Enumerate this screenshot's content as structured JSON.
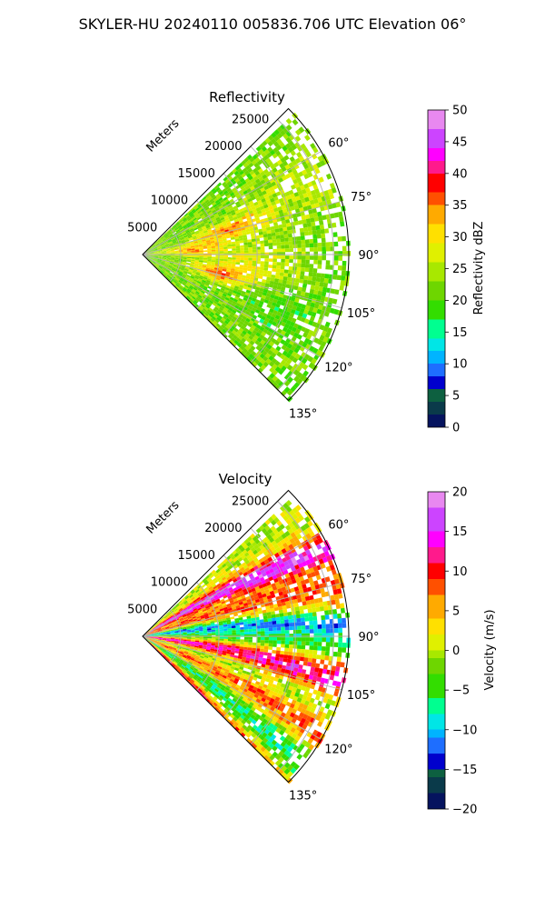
{
  "figure": {
    "suptitle": "SKYLER-HU  20240110  005836.706 UTC Elevation 06°"
  },
  "colors": {
    "grid": "#b0b0b0",
    "outline": "#000000",
    "background": "#ffffff"
  },
  "chart_data": [
    {
      "type": "heatmap",
      "projection": "polar sector (PPI)",
      "title": "Reflectivity",
      "radial_axis_label": "Meters",
      "radial_ticks": [
        5000,
        10000,
        15000,
        20000,
        25000
      ],
      "radial_tick_labels": [
        "5000",
        "10000",
        "15000",
        "20000",
        "25000"
      ],
      "azimuth_ticks": [
        60,
        75,
        90,
        105,
        120,
        135
      ],
      "azimuth_tick_labels": [
        "60°",
        "75°",
        "90°",
        "105°",
        "120°",
        "135°"
      ],
      "azimuth_range": [
        45,
        135
      ],
      "range_max_m": 27000,
      "grid": true,
      "colorbar": {
        "label": "Reflectivity dBZ",
        "range": [
          0,
          50
        ],
        "ticks": [
          0,
          5,
          10,
          15,
          20,
          25,
          30,
          35,
          40,
          45,
          50
        ],
        "tick_labels": [
          "0",
          "5",
          "10",
          "15",
          "20",
          "25",
          "30",
          "35",
          "40",
          "45",
          "50"
        ],
        "stops": [
          [
            0,
            "#05135e"
          ],
          [
            2,
            "#0a3a4a"
          ],
          [
            4,
            "#0d6040"
          ],
          [
            6,
            "#0000cd"
          ],
          [
            8,
            "#1e6eff"
          ],
          [
            10,
            "#00b4ff"
          ],
          [
            12,
            "#00e6e6"
          ],
          [
            14,
            "#00ff90"
          ],
          [
            17,
            "#33dd00"
          ],
          [
            20,
            "#6ed600"
          ],
          [
            23,
            "#a8e800"
          ],
          [
            26,
            "#e0f000"
          ],
          [
            29,
            "#ffe000"
          ],
          [
            32,
            "#ffaa00"
          ],
          [
            35,
            "#ff5000"
          ],
          [
            37,
            "#ff0000"
          ],
          [
            40,
            "#ff1a8c"
          ],
          [
            42,
            "#ff00ff"
          ],
          [
            44,
            "#cc44ff"
          ],
          [
            47,
            "#e888f0"
          ],
          [
            50,
            "#fbe1f6"
          ]
        ]
      },
      "field": {
        "base": 22,
        "features": [
          {
            "az": 73,
            "r": 0.45,
            "saz": 6,
            "sr": 0.18,
            "amp": 12
          },
          {
            "az": 84,
            "r": 0.25,
            "saz": 8,
            "sr": 0.16,
            "amp": 11
          },
          {
            "az": 103,
            "r": 0.38,
            "saz": 6,
            "sr": 0.14,
            "amp": 13
          },
          {
            "az": 95,
            "r": 0.55,
            "saz": 10,
            "sr": 0.2,
            "amp": 6
          },
          {
            "az": 110,
            "r": 0.65,
            "saz": 12,
            "sr": 0.25,
            "amp": -3
          },
          {
            "az": 65,
            "r": 0.8,
            "saz": 10,
            "sr": 0.2,
            "amp": 4
          }
        ],
        "noise": 3.5,
        "coverage": 0.78
      }
    },
    {
      "type": "heatmap",
      "projection": "polar sector (PPI)",
      "title": "Velocity",
      "radial_axis_label": "Meters",
      "radial_ticks": [
        5000,
        10000,
        15000,
        20000,
        25000
      ],
      "radial_tick_labels": [
        "5000",
        "10000",
        "15000",
        "20000",
        "25000"
      ],
      "azimuth_ticks": [
        60,
        75,
        90,
        105,
        120,
        135
      ],
      "azimuth_tick_labels": [
        "60°",
        "75°",
        "90°",
        "105°",
        "120°",
        "135°"
      ],
      "azimuth_range": [
        45,
        135
      ],
      "range_max_m": 27000,
      "grid": true,
      "colorbar": {
        "label": "Velocity (m/s)",
        "range": [
          -20,
          20
        ],
        "ticks": [
          -20,
          -15,
          -10,
          -5,
          0,
          5,
          10,
          15,
          20
        ],
        "tick_labels": [
          "−20",
          "−15",
          "−10",
          "−5",
          "0",
          "5",
          "10",
          "15",
          "20"
        ],
        "stops": [
          [
            -20,
            "#05135e"
          ],
          [
            -18,
            "#0a3a4a"
          ],
          [
            -16,
            "#0d6040"
          ],
          [
            -15,
            "#0000cd"
          ],
          [
            -13,
            "#1e6eff"
          ],
          [
            -11,
            "#00b4ff"
          ],
          [
            -10,
            "#00e6e6"
          ],
          [
            -8,
            "#00ff90"
          ],
          [
            -6,
            "#33dd00"
          ],
          [
            -3,
            "#6ed600"
          ],
          [
            -1,
            "#a8e800"
          ],
          [
            0,
            "#e0f000"
          ],
          [
            2,
            "#ffe000"
          ],
          [
            4,
            "#ffaa00"
          ],
          [
            7,
            "#ff5000"
          ],
          [
            9,
            "#ff0000"
          ],
          [
            11,
            "#ff1a8c"
          ],
          [
            13,
            "#ff00ff"
          ],
          [
            15,
            "#cc44ff"
          ],
          [
            18,
            "#e888f0"
          ],
          [
            20,
            "#fbe1f6"
          ]
        ]
      },
      "field": {
        "base": 0,
        "bands": [
          {
            "az": 58,
            "width": 5,
            "amp": 16
          },
          {
            "az": 70,
            "width": 6,
            "amp": 8
          },
          {
            "az": 80,
            "width": 4,
            "amp": -11
          },
          {
            "az": 88,
            "width": 5,
            "amp": -6
          },
          {
            "az": 96,
            "width": 6,
            "amp": 14
          },
          {
            "az": 104,
            "width": 5,
            "amp": -4
          },
          {
            "az": 112,
            "width": 6,
            "amp": 8
          },
          {
            "az": 122,
            "width": 5,
            "amp": -7
          },
          {
            "az": 132,
            "width": 4,
            "amp": 10
          }
        ],
        "noise": 3,
        "coverage": 0.82
      }
    }
  ]
}
